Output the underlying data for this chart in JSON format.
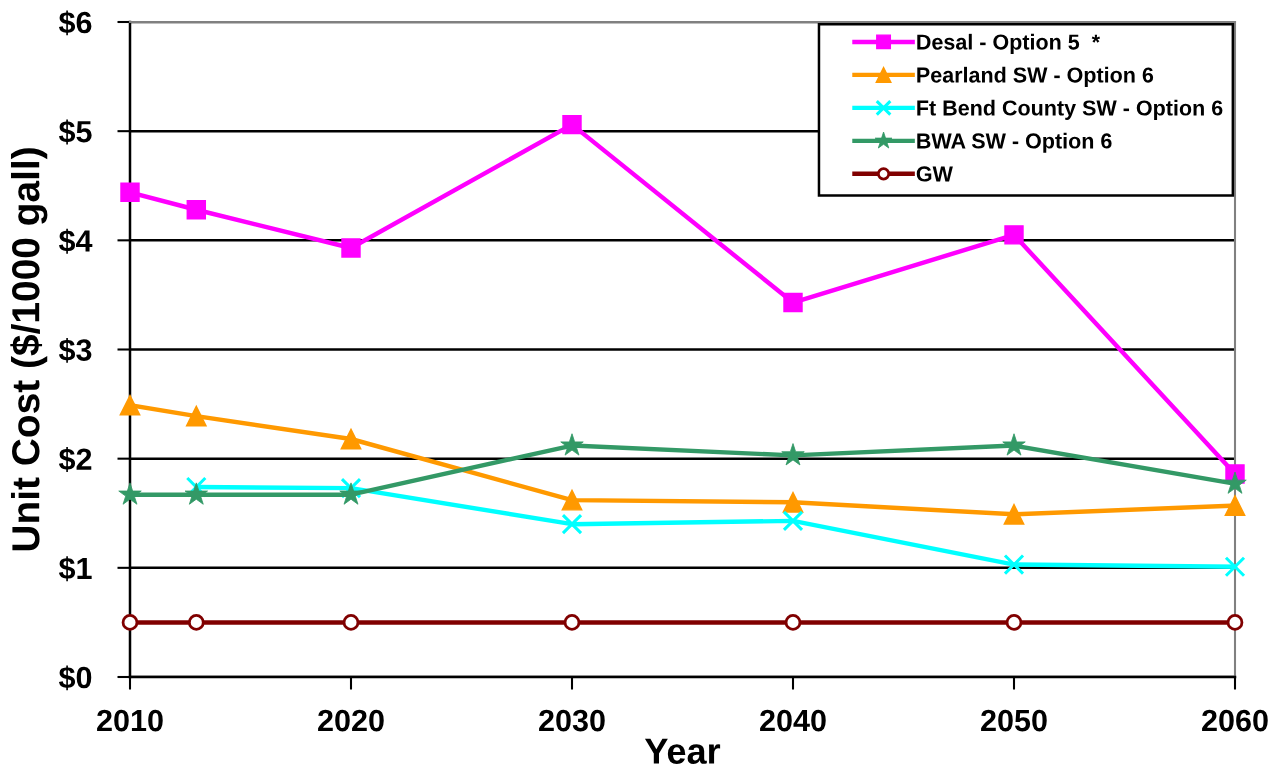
{
  "chart_data": {
    "type": "line",
    "xlabel": "Year",
    "ylabel": "Unit Cost ($/1000 gall)",
    "x": [
      2010,
      2013,
      2020,
      2030,
      2040,
      2050,
      2060
    ],
    "xlim": [
      2010,
      2060
    ],
    "xticks": [
      2010,
      2020,
      2030,
      2040,
      2050,
      2060
    ],
    "ylim": [
      0,
      6
    ],
    "yticks": [
      {
        "value": 0,
        "label": "$0"
      },
      {
        "value": 1,
        "label": "$1"
      },
      {
        "value": 2,
        "label": "$2"
      },
      {
        "value": 3,
        "label": "$3"
      },
      {
        "value": 4,
        "label": "$4"
      },
      {
        "value": 5,
        "label": "$5"
      },
      {
        "value": 6,
        "label": "$6"
      }
    ],
    "grid": "y",
    "legend": "top right",
    "line_style": "solid",
    "series": [
      {
        "name": "Desal - Option 5  *",
        "color": "#ff00ff",
        "marker": "square",
        "values": [
          4.44,
          4.28,
          3.93,
          5.06,
          3.43,
          4.05,
          1.86
        ]
      },
      {
        "name": "Pearland SW - Option 6",
        "color": "#ff9900",
        "marker": "triangle",
        "values": [
          2.49,
          2.39,
          2.18,
          1.62,
          1.6,
          1.49,
          1.57
        ]
      },
      {
        "name": "Ft Bend County SW - Option 6",
        "color": "#00ffff",
        "marker": "cross",
        "values": [
          null,
          1.74,
          1.73,
          1.4,
          1.43,
          1.03,
          1.01
        ]
      },
      {
        "name": "BWA SW - Option 6",
        "color": "#339966",
        "marker": "star",
        "values": [
          1.67,
          1.67,
          1.67,
          2.12,
          2.03,
          2.12,
          1.77
        ]
      },
      {
        "name": "GW",
        "color": "#800000",
        "marker": "circle",
        "values": [
          0.5,
          0.5,
          0.5,
          0.5,
          0.5,
          0.5,
          0.5
        ]
      }
    ]
  }
}
